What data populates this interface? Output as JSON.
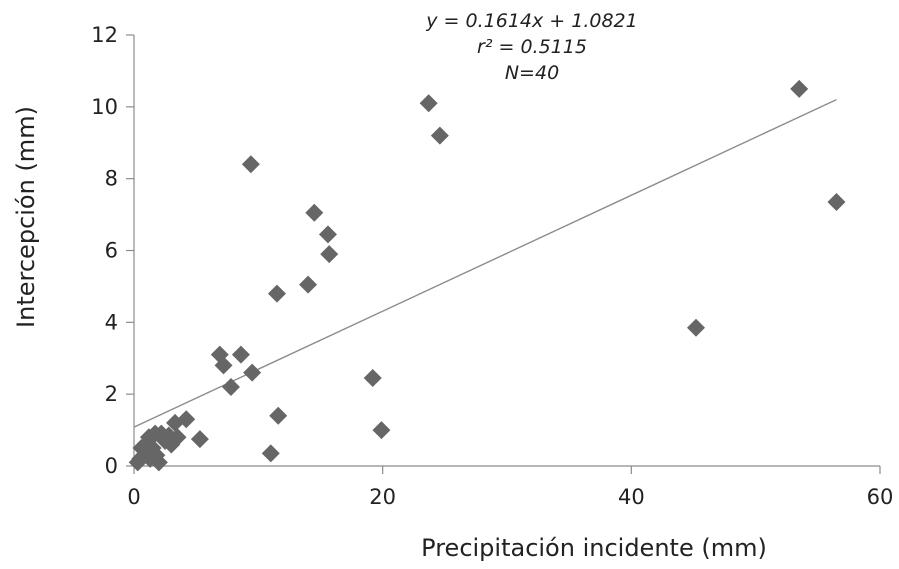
{
  "chart_data": {
    "type": "scatter",
    "title": "",
    "xlabel": "Precipitación incidente (mm)",
    "ylabel": "Intercepción (mm)",
    "xlim": [
      0,
      60
    ],
    "ylim": [
      0,
      12
    ],
    "xticks": [
      0,
      20,
      40,
      60
    ],
    "yticks": [
      0,
      2,
      4,
      6,
      8,
      10,
      12
    ],
    "grid": false,
    "legend": "none",
    "marker": "diamond",
    "marker_color": "#666666",
    "annotation": {
      "equation": "y = 0.1614x + 1.0821",
      "r_squared": "r² = 0.5115",
      "n": "N=40"
    },
    "trendline": {
      "slope": 0.1614,
      "intercept": 1.0821,
      "x_range": [
        0,
        56.5
      ],
      "color": "#8c8c8c"
    },
    "points": [
      [
        0.3,
        0.1
      ],
      [
        0.5,
        0.2
      ],
      [
        0.6,
        0.5
      ],
      [
        0.8,
        0.3
      ],
      [
        1.0,
        0.6
      ],
      [
        1.2,
        0.8
      ],
      [
        1.3,
        0.2
      ],
      [
        1.5,
        0.5
      ],
      [
        1.7,
        0.9
      ],
      [
        2.0,
        0.1
      ],
      [
        2.2,
        0.9
      ],
      [
        2.5,
        0.7
      ],
      [
        3.0,
        0.6
      ],
      [
        3.3,
        1.2
      ],
      [
        3.5,
        0.8
      ],
      [
        4.2,
        1.3
      ],
      [
        5.3,
        0.75
      ],
      [
        6.9,
        3.1
      ],
      [
        7.2,
        2.8
      ],
      [
        7.8,
        2.2
      ],
      [
        8.6,
        3.1
      ],
      [
        9.4,
        8.4
      ],
      [
        9.5,
        2.6
      ],
      [
        11.0,
        0.35
      ],
      [
        11.5,
        4.8
      ],
      [
        11.6,
        1.4
      ],
      [
        14.0,
        5.05
      ],
      [
        14.5,
        7.05
      ],
      [
        15.6,
        6.45
      ],
      [
        15.7,
        5.9
      ],
      [
        19.2,
        2.45
      ],
      [
        19.9,
        1.0
      ],
      [
        23.7,
        10.1
      ],
      [
        24.6,
        9.2
      ],
      [
        45.2,
        3.85
      ],
      [
        53.5,
        10.5
      ],
      [
        56.5,
        7.35
      ],
      [
        0.9,
        0.4
      ],
      [
        1.8,
        0.3
      ],
      [
        2.8,
        0.85
      ]
    ]
  }
}
